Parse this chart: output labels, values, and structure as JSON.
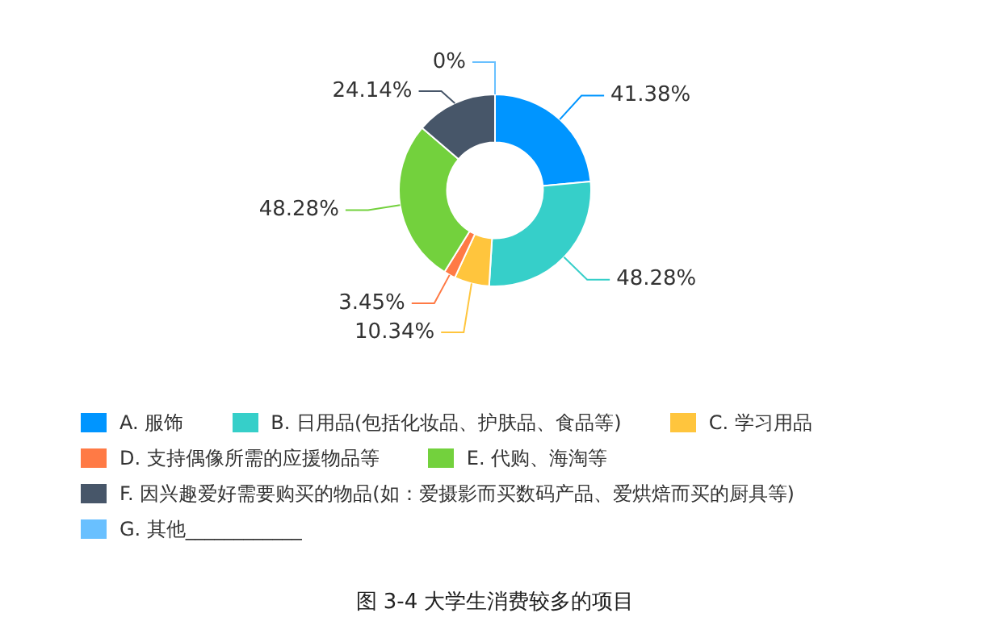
{
  "chart_data": {
    "type": "donut",
    "title": "图 3-4 大学生消费较多的项目",
    "categories": [
      "A. 服饰",
      "B. 日用品(包括化妆品、护肤品、食品等)",
      "C. 学习用品",
      "D. 支持偶像所需的应援物品等",
      "E. 代购、海淘等",
      "F. 因兴趣爱好需要购买的物品(如：爱摄影而买数码产品、爱烘焙而买的厨具等)",
      "G. 其他____________"
    ],
    "values": [
      41.38,
      48.28,
      10.34,
      3.45,
      48.28,
      24.14,
      0
    ],
    "value_labels": [
      "41.38%",
      "48.28%",
      "10.34%",
      "3.45%",
      "48.28%",
      "24.14%",
      "0%"
    ],
    "colors": [
      "#0095ff",
      "#36cfc9",
      "#ffc53d",
      "#ff7a45",
      "#73d13d",
      "#475669",
      "#69c0ff"
    ],
    "legend": "bottom"
  }
}
